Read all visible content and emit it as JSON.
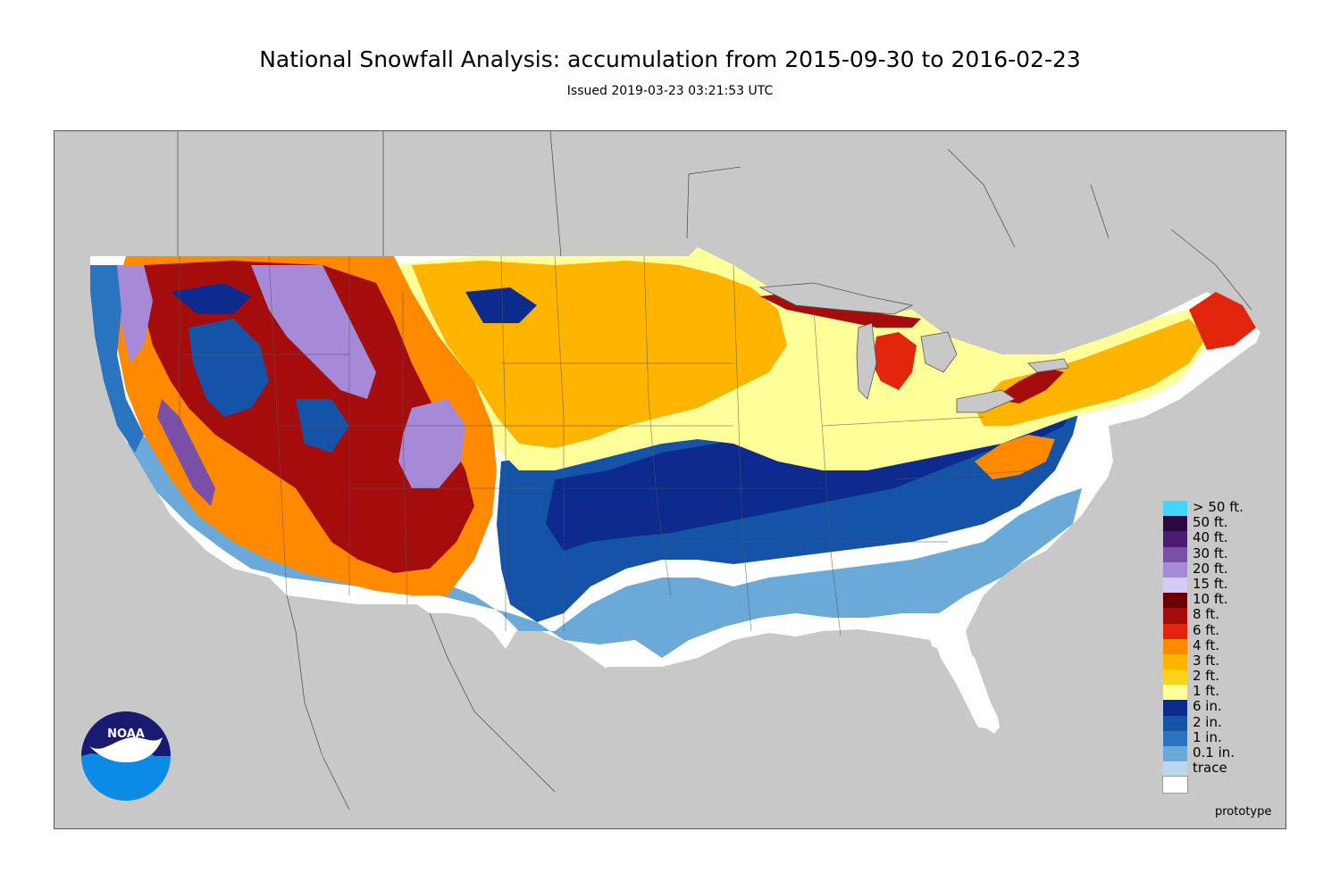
{
  "header": {
    "title": "National Snowfall Analysis: accumulation from 2015-09-30 to 2016-02-23",
    "subtitle": "Issued 2019-03-23 03:21:53 UTC"
  },
  "map": {
    "region": "Contiguous United States",
    "background_color": "#c8c8c8",
    "land_outside_color": "#c8c8c8",
    "boundary_color": "#555555"
  },
  "legend": {
    "items": [
      {
        "label": "> 50 ft.",
        "color": "#3fd8f7"
      },
      {
        "label": "50 ft.",
        "color": "#2a0a40"
      },
      {
        "label": "40 ft.",
        "color": "#4c1d6e"
      },
      {
        "label": "30 ft.",
        "color": "#7a4fa8"
      },
      {
        "label": "20 ft.",
        "color": "#a68ad8"
      },
      {
        "label": "15 ft.",
        "color": "#d4ccf7"
      },
      {
        "label": "10 ft.",
        "color": "#6b0000"
      },
      {
        "label": "8 ft.",
        "color": "#a50d0d"
      },
      {
        "label": "6 ft.",
        "color": "#e2250d"
      },
      {
        "label": "4 ft.",
        "color": "#ff8a00"
      },
      {
        "label": "3 ft.",
        "color": "#ffb400"
      },
      {
        "label": "2 ft.",
        "color": "#ffd21a"
      },
      {
        "label": "1 ft.",
        "color": "#ffff9a"
      },
      {
        "label": "6 in.",
        "color": "#0d2a8f"
      },
      {
        "label": "2 in.",
        "color": "#1553a8"
      },
      {
        "label": "1 in.",
        "color": "#2b74bf"
      },
      {
        "label": "0.1 in.",
        "color": "#6aa9d8"
      },
      {
        "label": "trace",
        "color": "#b9d7ee"
      },
      {
        "label": "",
        "color": "#ffffff"
      }
    ]
  },
  "footer": {
    "prototype_label": "prototype",
    "logo_text": "NOAA"
  }
}
